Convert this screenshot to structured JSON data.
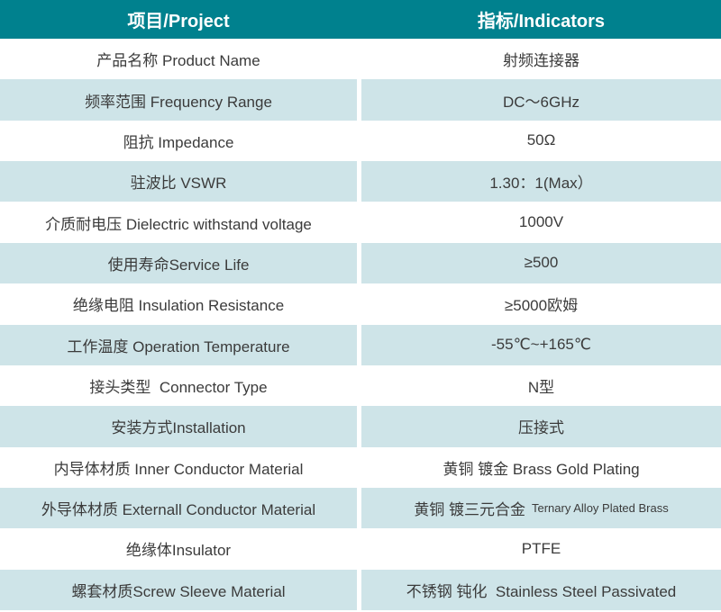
{
  "table": {
    "colors": {
      "header_bg": "#00818E",
      "header_text": "#FFFFFF",
      "row_bg": "#FFFFFF",
      "row_alt_bg": "#CEE4E8",
      "body_text": "#3B3B3B"
    },
    "header": {
      "project": "项目/Project",
      "indicators": "指标/Indicators"
    },
    "rows": [
      {
        "label": "产品名称 Product Name",
        "value": "射频连接器"
      },
      {
        "label": "频率范围 Frequency Range",
        "value": "DC～6GHz"
      },
      {
        "label": "阻抗 Impedance",
        "value": "50Ω"
      },
      {
        "label": "驻波比 VSWR",
        "value": "1.30：1(Max）"
      },
      {
        "label": "介质耐电压 Dielectric withstand voltage",
        "value": "1000V"
      },
      {
        "label": "使用寿命Service Life",
        "value": "≥500"
      },
      {
        "label": "绝缘电阻 Insulation Resistance",
        "value": "≥5000欧姆"
      },
      {
        "label": "工作温度 Operation Temperature",
        "value": "-55℃~+165℃"
      },
      {
        "label": "接头类型  Connector Type",
        "value": "N型"
      },
      {
        "label": "安装方式Installation",
        "value": "压接式"
      },
      {
        "label": "内导体材质 Inner Conductor Material",
        "value": "黄铜 镀金 Brass Gold Plating"
      },
      {
        "label": "外导体材质 Externall Conductor Material",
        "value": "黄铜 镀三元合金",
        "value_sub": "Ternary Alloy Plated Brass"
      },
      {
        "label": "绝缘体Insulator",
        "value": "PTFE"
      },
      {
        "label": "螺套材质Screw Sleeve Material",
        "value": "不锈钢 钝化  Stainless Steel Passivated"
      }
    ]
  }
}
